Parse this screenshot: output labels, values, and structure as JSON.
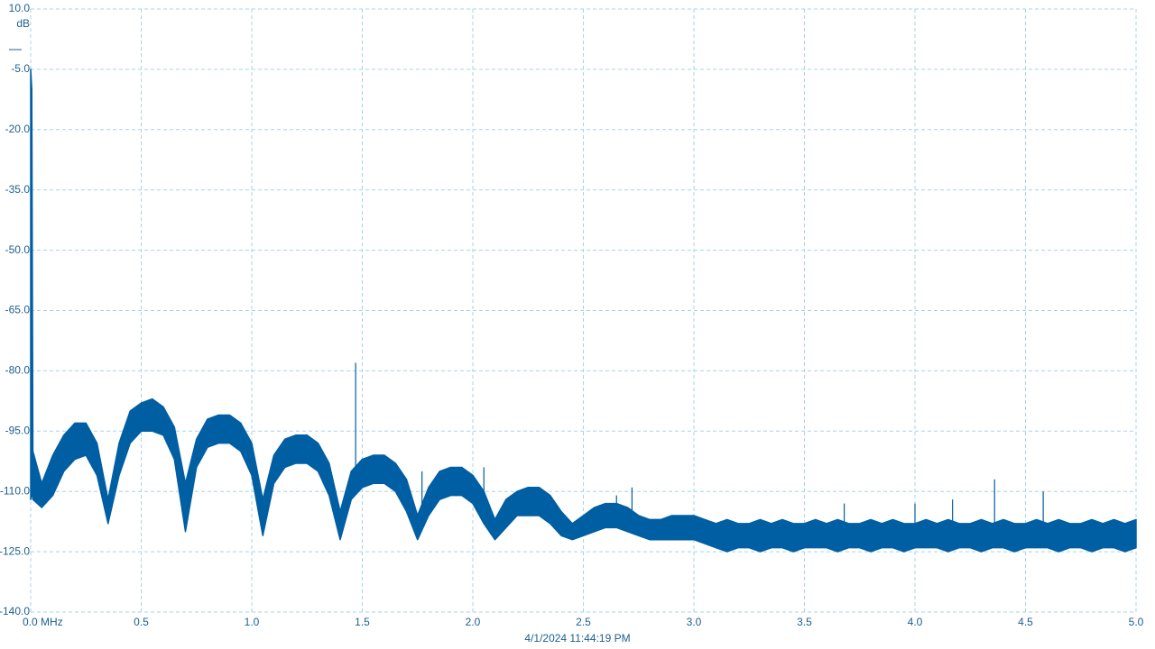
{
  "chart_data": {
    "type": "band",
    "x_unit_time": "4/1/2024 11:44:19 PM",
    "y_unit": "dB",
    "x": [
      0,
      0.005,
      0.01,
      0.05,
      0.1,
      0.15,
      0.2,
      0.25,
      0.3,
      0.35,
      0.4,
      0.45,
      0.5,
      0.55,
      0.6,
      0.65,
      0.7,
      0.75,
      0.8,
      0.85,
      0.9,
      0.95,
      1,
      1.05,
      1.1,
      1.15,
      1.2,
      1.25,
      1.3,
      1.35,
      1.4,
      1.45,
      1.5,
      1.55,
      1.6,
      1.65,
      1.7,
      1.75,
      1.8,
      1.85,
      1.9,
      1.95,
      2,
      2.05,
      2.1,
      2.15,
      2.2,
      2.25,
      2.3,
      2.35,
      2.4,
      2.45,
      2.5,
      2.55,
      2.6,
      2.65,
      2.7,
      2.75,
      2.8,
      2.85,
      2.9,
      2.95,
      3,
      3.05,
      3.1,
      3.15,
      3.2,
      3.25,
      3.3,
      3.35,
      3.4,
      3.45,
      3.5,
      3.55,
      3.6,
      3.65,
      3.7,
      3.75,
      3.8,
      3.85,
      3.9,
      3.95,
      4,
      4.05,
      4.1,
      4.15,
      4.2,
      4.25,
      4.3,
      4.35,
      4.4,
      4.45,
      4.5,
      4.55,
      4.6,
      4.65,
      4.7,
      4.75,
      4.8,
      4.85,
      4.9,
      4.95,
      5
    ],
    "series": [
      {
        "color": "#005ea2",
        "values": [
          -5,
          -10,
          -100,
          -108,
          -101,
          -96,
          -93,
          -93,
          -98,
          -112,
          -98,
          -90,
          -88,
          -87,
          -89,
          -94,
          -108,
          -97,
          -92,
          -91,
          -91,
          -93,
          -98,
          -112,
          -101,
          -97,
          -96,
          -96,
          -98,
          -103,
          -115,
          -105,
          -102,
          -101,
          -101,
          -103,
          -107,
          -116,
          -109,
          -105,
          -104,
          -104,
          -106,
          -110,
          -117,
          -112,
          -110,
          -109,
          -109,
          -111,
          -115,
          -118,
          -116,
          -114,
          -113,
          -113,
          -114,
          -116,
          -117,
          -117,
          -116,
          -116,
          -116,
          -117,
          -118,
          -117,
          -118,
          -118,
          -117,
          -118,
          -117,
          -118,
          -118,
          -117,
          -118,
          -117,
          -118,
          -118,
          -117,
          -118,
          -117,
          -118,
          -118,
          -117,
          -118,
          -117,
          -118,
          -118,
          -117,
          -118,
          -117,
          -118,
          -118,
          -117,
          -118,
          -117,
          -118,
          -118,
          -117,
          -118,
          -117,
          -118,
          -117
        ]
      },
      {
        "color": "#005ea2",
        "values": [
          -112,
          -110,
          -112,
          -114,
          -111,
          -105,
          -102,
          -101,
          -106,
          -118,
          -106,
          -98,
          -95,
          -95,
          -96,
          -102,
          -120,
          -104,
          -99,
          -98,
          -98,
          -100,
          -106,
          -121,
          -108,
          -104,
          -103,
          -103,
          -105,
          -111,
          -122,
          -112,
          -109,
          -108,
          -108,
          -110,
          -115,
          -122,
          -116,
          -112,
          -111,
          -111,
          -113,
          -118,
          -122,
          -119,
          -116,
          -116,
          -116,
          -118,
          -121,
          -122,
          -121,
          -120,
          -119,
          -119,
          -120,
          -121,
          -122,
          -122,
          -122,
          -122,
          -122,
          -123,
          -124,
          -125,
          -124,
          -124,
          -125,
          -124,
          -124,
          -125,
          -124,
          -124,
          -124,
          -125,
          -124,
          -124,
          -125,
          -124,
          -124,
          -125,
          -124,
          -124,
          -124,
          -125,
          -124,
          -124,
          -125,
          -124,
          -124,
          -125,
          -124,
          -124,
          -124,
          -125,
          -124,
          -124,
          -125,
          -124,
          -124,
          -125,
          -124
        ]
      }
    ],
    "spurs": {
      "x": [
        1.47,
        1.77,
        2.05,
        2.65,
        2.72,
        3.68,
        4.0,
        4.17,
        4.36,
        4.58
      ],
      "values": [
        -78,
        -105,
        -104,
        -111,
        -109,
        -113,
        -113,
        -112,
        -107,
        -110
      ]
    },
    "xlim": [
      0,
      5
    ],
    "xticks": [
      {
        "value": 0,
        "label": "0.0 MHz"
      },
      0.5,
      {
        "value": 1,
        "label": "1.0"
      },
      1.5,
      {
        "value": 2,
        "label": "2.0"
      },
      2.5,
      {
        "value": 3,
        "label": "3.0"
      },
      3.5,
      {
        "value": 4,
        "label": "4.0"
      },
      4.5,
      {
        "value": 5,
        "label": "5.0"
      }
    ],
    "ylim": [
      -140,
      10
    ],
    "yticks": [
      {
        "value": 10,
        "label": "10.0"
      },
      {
        "value": -5,
        "label": "-5.0"
      },
      {
        "value": -20,
        "label": "-20.0"
      },
      {
        "value": -35,
        "label": "-35.0"
      },
      {
        "value": -50,
        "label": "-50.0"
      },
      {
        "value": -65,
        "label": "-65.0"
      },
      {
        "value": -80,
        "label": "-80.0"
      },
      {
        "value": -95,
        "label": "-95.0"
      },
      {
        "value": -110,
        "label": "-110.0"
      },
      {
        "value": -125,
        "label": "-125.0"
      },
      {
        "value": -140,
        "label": "-140.0"
      }
    ],
    "grid": true
  }
}
